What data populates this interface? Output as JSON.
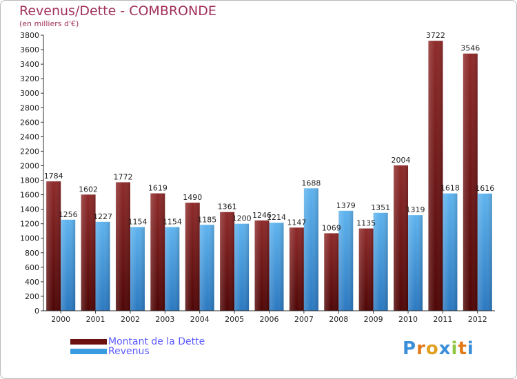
{
  "header": {
    "title": "Revenus/Dette - COMBRONDE",
    "subtitle": "(en milliers d'€)"
  },
  "chart_data": {
    "type": "bar",
    "title": "Revenus/Dette - COMBRONDE",
    "ylabel": "(en milliers d'€)",
    "xlabel": "",
    "categories": [
      "2000",
      "2001",
      "2002",
      "2003",
      "2004",
      "2005",
      "2006",
      "2007",
      "2008",
      "2009",
      "2010",
      "2011",
      "2012"
    ],
    "series": [
      {
        "name": "Montant de la Dette",
        "color": "#7a1f1f",
        "values": [
          1784,
          1602,
          1772,
          1619,
          1490,
          1361,
          1246,
          1147,
          1069,
          1135,
          2004,
          3722,
          3546
        ]
      },
      {
        "name": "Revenus",
        "color": "#3a9be0",
        "values": [
          1256,
          1227,
          1154,
          1154,
          1185,
          1200,
          1214,
          1688,
          1379,
          1351,
          1319,
          1618,
          1616
        ]
      }
    ],
    "ylim": [
      0,
      3800
    ],
    "yticks": [
      0,
      200,
      400,
      600,
      800,
      1000,
      1200,
      1400,
      1600,
      1800,
      2000,
      2200,
      2400,
      2600,
      2800,
      3000,
      3200,
      3400,
      3600,
      3800
    ],
    "grid": false,
    "legend": "bottom-left"
  },
  "legend": {
    "items": [
      {
        "label": "Montant de la Dette",
        "color": "#6b0f0f"
      },
      {
        "label": "Revenus",
        "color": "#3a9be0"
      }
    ]
  },
  "logo": {
    "letters": [
      "P",
      "r",
      "o",
      "x",
      "i",
      "t",
      "i"
    ],
    "colors": [
      "#3b8fd8",
      "#e07a1a",
      "#e0a020",
      "#3b8fd8",
      "#8dc63f",
      "#e07a1a",
      "#3b8fd8"
    ]
  }
}
